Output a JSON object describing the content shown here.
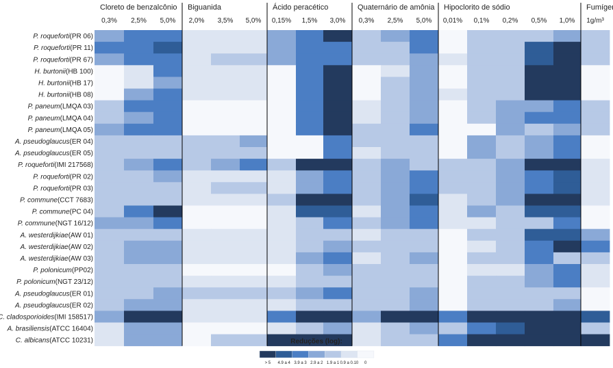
{
  "chart_data": {
    "type": "heatmap",
    "title": "",
    "groups": [
      {
        "name": "Cloreto de benzalcônio",
        "concentrations": [
          "0,3%",
          "2,5%",
          "5,0%"
        ]
      },
      {
        "name": "Biguanida",
        "concentrations": [
          "2,0%",
          "3,5%",
          "5,0%"
        ]
      },
      {
        "name": "Ácido peracético",
        "concentrations": [
          "0,15%",
          "1,5%",
          "3,0%"
        ]
      },
      {
        "name": "Quaternário de amônia",
        "concentrations": [
          "0,3%",
          "2,5%",
          "5,0%"
        ]
      },
      {
        "name": "Hipoclorito de sódio",
        "concentrations": [
          "0,01%",
          "0,1%",
          "0,2%",
          "0,5%",
          "1,0%"
        ]
      },
      {
        "name": "Fumígeno",
        "concentrations": [
          "1g/m³"
        ]
      }
    ],
    "rows": [
      {
        "species": "P. roqueforti",
        "strain": "(PR 06)"
      },
      {
        "species": "P. roqueforti",
        "strain": "(PR 11)"
      },
      {
        "species": "P. roqueforti",
        "strain": "(PR 67)"
      },
      {
        "species": "H. burtonii",
        "strain": "(HB 100)"
      },
      {
        "species": "H. burtonii",
        "strain": "(HB 17)"
      },
      {
        "species": "H. burtonii",
        "strain": "(HB 08)"
      },
      {
        "species": "P. paneum",
        "strain": "(LMQA 03)"
      },
      {
        "species": "P. paneum",
        "strain": "(LMQA 04)"
      },
      {
        "species": "P. paneum",
        "strain": "(LMQA 05)"
      },
      {
        "species": "A. pseudoglaucus",
        "strain": "(ER 04)"
      },
      {
        "species": "A. pseudoglaucus",
        "strain": "(ER 05)"
      },
      {
        "species": "P. roqueforti",
        "strain": "(IMI 217568)"
      },
      {
        "species": "P. roqueforti",
        "strain": "(PR 02)"
      },
      {
        "species": "P. roqueforti",
        "strain": "(PR 03)"
      },
      {
        "species": "P. commune",
        "strain": "(CCT 7683)"
      },
      {
        "species": "P. commune",
        "strain": "(PC 04)"
      },
      {
        "species": "P. commune",
        "strain": "(NGT 16/12)"
      },
      {
        "species": "A. westerdijkiae",
        "strain": "(AW 01)"
      },
      {
        "species": "A. westerdijkiae",
        "strain": "(AW 02)"
      },
      {
        "species": "A. westerdijkiae",
        "strain": "(AW 03)"
      },
      {
        "species": "P. polonicum",
        "strain": "(PP02)"
      },
      {
        "species": "P. polonicum",
        "strain": "(NGT 23/12)"
      },
      {
        "species": "A. pseudoglaucus",
        "strain": "(ER 01)"
      },
      {
        "species": "A. pseudoglaucus",
        "strain": "(ER 02)"
      },
      {
        "species": "C. cladosporioides",
        "strain": "(IMI 158517)"
      },
      {
        "species": "A. brasiliensis",
        "strain": "(ATCC 16404)"
      },
      {
        "species": "C. albicans",
        "strain": "(ATCC 10231)"
      }
    ],
    "levels": [
      {
        "label": "> 5",
        "color": "#233a5e"
      },
      {
        "label": "4.9 a 4",
        "color": "#2f5d97"
      },
      {
        "label": "3.9 a 3",
        "color": "#4b7ec4"
      },
      {
        "label": "2.9 a 2",
        "color": "#8aa9d7"
      },
      {
        "label": "1.9 a 1",
        "color": "#b7c9e6"
      },
      {
        "label": "0.9 a 0.10",
        "color": "#dde5f2"
      },
      {
        "label": "0",
        "color": "#f6f8fc"
      }
    ],
    "values": [
      [
        3,
        2,
        2,
        5,
        5,
        5,
        3,
        2,
        0,
        4,
        3,
        2,
        6,
        4,
        4,
        4,
        3,
        4
      ],
      [
        2,
        2,
        1,
        5,
        5,
        5,
        3,
        2,
        2,
        4,
        4,
        2,
        6,
        4,
        4,
        1,
        0,
        4
      ],
      [
        3,
        2,
        2,
        5,
        4,
        4,
        3,
        2,
        2,
        4,
        4,
        3,
        5,
        4,
        4,
        1,
        0,
        4
      ],
      [
        6,
        5,
        2,
        5,
        5,
        5,
        6,
        2,
        0,
        6,
        5,
        3,
        6,
        4,
        4,
        0,
        0,
        6
      ],
      [
        6,
        5,
        3,
        5,
        5,
        5,
        6,
        2,
        0,
        6,
        4,
        3,
        6,
        4,
        4,
        0,
        0,
        6
      ],
      [
        6,
        3,
        2,
        5,
        5,
        5,
        6,
        2,
        0,
        6,
        4,
        3,
        5,
        4,
        4,
        0,
        0,
        6
      ],
      [
        4,
        2,
        2,
        6,
        6,
        6,
        6,
        2,
        0,
        5,
        4,
        3,
        6,
        4,
        3,
        3,
        2,
        4
      ],
      [
        4,
        3,
        2,
        6,
        6,
        6,
        6,
        2,
        0,
        5,
        4,
        3,
        6,
        4,
        3,
        2,
        2,
        4
      ],
      [
        3,
        2,
        2,
        6,
        6,
        6,
        6,
        2,
        0,
        4,
        4,
        2,
        6,
        6,
        3,
        4,
        3,
        4
      ],
      [
        4,
        4,
        4,
        4,
        4,
        3,
        6,
        6,
        2,
        4,
        4,
        4,
        6,
        3,
        4,
        3,
        2,
        6
      ],
      [
        4,
        4,
        4,
        4,
        4,
        4,
        6,
        6,
        2,
        5,
        4,
        4,
        6,
        3,
        4,
        3,
        2,
        6
      ],
      [
        4,
        3,
        2,
        4,
        3,
        2,
        4,
        0,
        0,
        4,
        3,
        4,
        4,
        4,
        3,
        0,
        0,
        5
      ],
      [
        4,
        4,
        3,
        5,
        5,
        5,
        5,
        3,
        2,
        4,
        3,
        2,
        4,
        4,
        3,
        2,
        1,
        5
      ],
      [
        4,
        4,
        4,
        5,
        4,
        4,
        5,
        3,
        2,
        4,
        3,
        2,
        4,
        4,
        3,
        2,
        1,
        5
      ],
      [
        4,
        4,
        4,
        5,
        5,
        5,
        4,
        0,
        0,
        4,
        3,
        1,
        5,
        4,
        3,
        0,
        0,
        5
      ],
      [
        4,
        2,
        0,
        6,
        6,
        6,
        5,
        1,
        1,
        5,
        3,
        2,
        5,
        3,
        4,
        1,
        1,
        6
      ],
      [
        3,
        3,
        2,
        6,
        6,
        6,
        5,
        4,
        2,
        4,
        3,
        2,
        5,
        5,
        4,
        4,
        2,
        6
      ],
      [
        4,
        4,
        4,
        5,
        5,
        5,
        5,
        4,
        4,
        5,
        4,
        4,
        6,
        4,
        4,
        1,
        1,
        3
      ],
      [
        4,
        3,
        3,
        5,
        5,
        5,
        5,
        4,
        3,
        4,
        4,
        4,
        6,
        5,
        4,
        2,
        0,
        2
      ],
      [
        4,
        3,
        3,
        5,
        5,
        5,
        5,
        3,
        2,
        5,
        4,
        3,
        6,
        4,
        4,
        2,
        4,
        4
      ],
      [
        4,
        4,
        4,
        6,
        6,
        6,
        6,
        4,
        3,
        4,
        4,
        4,
        6,
        5,
        5,
        3,
        2,
        5
      ],
      [
        4,
        4,
        4,
        5,
        5,
        5,
        5,
        4,
        4,
        4,
        4,
        4,
        6,
        4,
        4,
        3,
        2,
        5
      ],
      [
        4,
        4,
        3,
        4,
        4,
        4,
        4,
        3,
        2,
        4,
        4,
        3,
        6,
        4,
        4,
        4,
        4,
        6
      ],
      [
        4,
        3,
        3,
        5,
        5,
        5,
        5,
        4,
        4,
        4,
        4,
        3,
        6,
        4,
        4,
        4,
        3,
        6
      ],
      [
        3,
        0,
        0,
        5,
        5,
        5,
        2,
        0,
        0,
        3,
        0,
        0,
        2,
        0,
        0,
        0,
        0,
        1
      ],
      [
        5,
        3,
        3,
        6,
        6,
        6,
        5,
        4,
        3,
        5,
        4,
        3,
        4,
        2,
        1,
        0,
        0,
        4
      ],
      [
        5,
        3,
        3,
        6,
        4,
        4,
        0,
        0,
        0,
        5,
        4,
        4,
        2,
        0,
        0,
        0,
        0,
        0
      ]
    ]
  },
  "legend": {
    "title": "Reduções (log):"
  }
}
